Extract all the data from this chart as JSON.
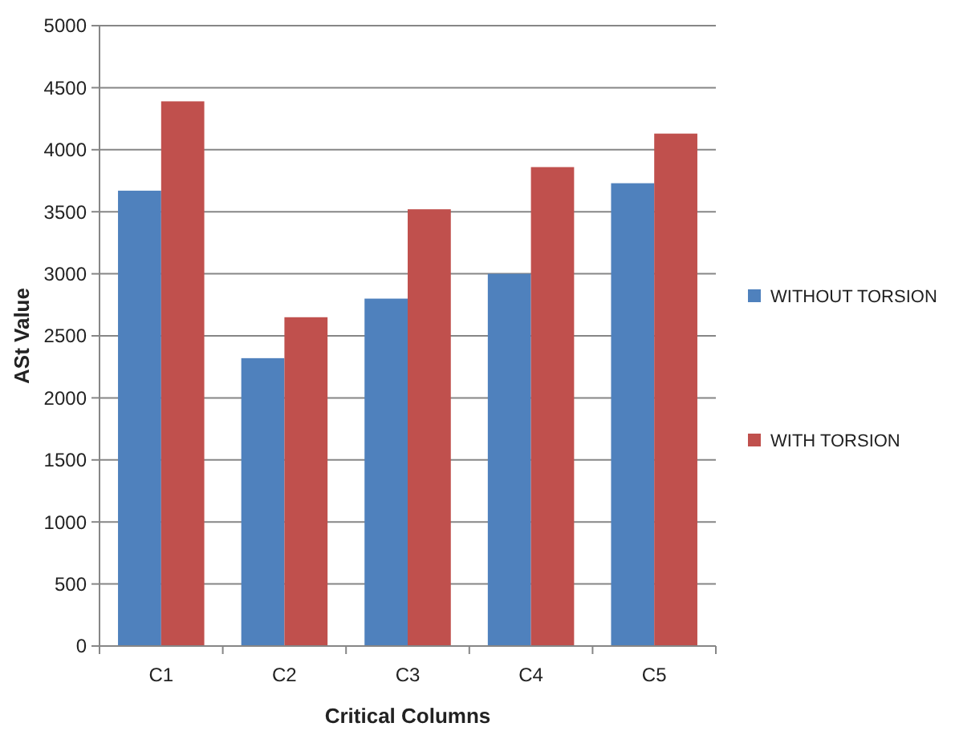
{
  "chart_data": {
    "type": "bar",
    "xlabel": "Critical Columns",
    "ylabel": "ASt Value",
    "categories": [
      "C1",
      "C2",
      "C3",
      "C4",
      "C5"
    ],
    "series": [
      {
        "name": "WITHOUT TORSION",
        "color": "#4f81bd",
        "values": [
          3670,
          2320,
          2800,
          3000,
          3730
        ]
      },
      {
        "name": "WITH TORSION",
        "color": "#c0504d",
        "values": [
          4390,
          2650,
          3520,
          3860,
          4130
        ]
      }
    ],
    "ylim": [
      0,
      5000
    ],
    "yticks": [
      0,
      500,
      1000,
      1500,
      2000,
      2500,
      3000,
      3500,
      4000,
      4500,
      5000
    ],
    "grid": "y",
    "legend": "right"
  }
}
